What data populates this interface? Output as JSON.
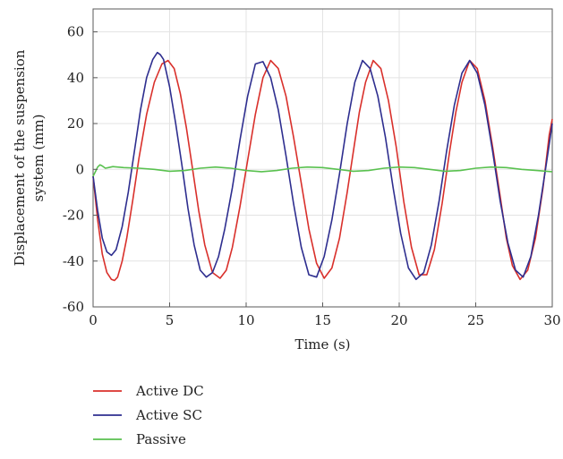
{
  "chart_data": {
    "type": "line",
    "title": "",
    "xlabel": "Time (s)",
    "ylabel_lines": [
      "Displacement of the suspension",
      "system (mm)"
    ],
    "xlim": [
      0,
      30
    ],
    "ylim": [
      -60,
      70
    ],
    "xticks": [
      0,
      5,
      10,
      15,
      20,
      25,
      30
    ],
    "yticks": [
      -60,
      -40,
      -20,
      0,
      20,
      40,
      60
    ],
    "grid": true,
    "legend_position": "bottom-left, below plot",
    "series": [
      {
        "name": "Active DC",
        "color": "#d9302b",
        "x": [
          0,
          0.3,
          0.6,
          0.9,
          1.2,
          1.4,
          1.6,
          1.9,
          2.2,
          2.6,
          3.0,
          3.5,
          4.0,
          4.5,
          4.9,
          5.3,
          5.7,
          6.1,
          6.5,
          6.9,
          7.3,
          7.8,
          8.3,
          8.7,
          9.1,
          9.6,
          10.1,
          10.6,
          11.1,
          11.6,
          12.1,
          12.6,
          13.1,
          13.6,
          14.1,
          14.6,
          15.1,
          15.6,
          16.1,
          16.6,
          17.1,
          17.4,
          17.8,
          18.3,
          18.8,
          19.3,
          19.8,
          20.3,
          20.8,
          21.3,
          21.8,
          22.3,
          22.8,
          23.3,
          23.7,
          24.1,
          24.6,
          25.1,
          25.6,
          26.1,
          26.6,
          27.0,
          27.4,
          27.9,
          28.4,
          28.9,
          29.4,
          29.8,
          30.0
        ],
        "y": [
          -3,
          -22,
          -37,
          -45,
          -48,
          -48.5,
          -47,
          -40,
          -30,
          -13,
          5,
          24,
          38,
          46,
          47.5,
          44,
          33,
          18,
          0,
          -18,
          -33,
          -45,
          -47.5,
          -44,
          -34,
          -16,
          4,
          24,
          40,
          47.5,
          44,
          32,
          14,
          -6,
          -26,
          -41,
          -47.5,
          -43,
          -30,
          -10,
          12,
          25,
          38,
          47.5,
          44,
          30,
          10,
          -14,
          -34,
          -46,
          -46,
          -35,
          -15,
          8,
          25,
          38,
          47.5,
          44,
          30,
          10,
          -12,
          -30,
          -42,
          -48,
          -44,
          -30,
          -8,
          15,
          22
        ]
      },
      {
        "name": "Active SC",
        "color": "#2e2e8f",
        "x": [
          0,
          0.3,
          0.6,
          0.9,
          1.2,
          1.5,
          1.9,
          2.3,
          2.7,
          3.1,
          3.5,
          3.9,
          4.2,
          4.4,
          4.6,
          5.0,
          5.4,
          5.8,
          6.2,
          6.6,
          7.0,
          7.4,
          7.8,
          8.2,
          8.6,
          9.1,
          9.6,
          10.1,
          10.6,
          11.1,
          11.6,
          12.1,
          12.6,
          13.1,
          13.6,
          14.1,
          14.6,
          15.1,
          15.6,
          16.1,
          16.6,
          17.1,
          17.6,
          18.1,
          18.6,
          19.1,
          19.6,
          20.1,
          20.6,
          21.1,
          21.6,
          22.1,
          22.6,
          23.1,
          23.6,
          24.1,
          24.6,
          25.1,
          25.6,
          26.1,
          26.6,
          27.1,
          27.6,
          28.1,
          28.6,
          29.1,
          29.6,
          30.0
        ],
        "y": [
          -3,
          -18,
          -30,
          -36,
          -37.5,
          -35,
          -25,
          -10,
          8,
          26,
          40,
          48,
          51,
          50,
          48,
          36,
          20,
          2,
          -17,
          -33,
          -44,
          -47,
          -45,
          -38,
          -26,
          -8,
          13,
          32,
          46,
          47,
          40,
          26,
          6,
          -15,
          -34,
          -46,
          -47,
          -38,
          -22,
          -2,
          20,
          38,
          47.5,
          44,
          32,
          14,
          -8,
          -28,
          -43,
          -48,
          -45,
          -33,
          -14,
          8,
          28,
          42,
          47.5,
          42,
          28,
          8,
          -14,
          -32,
          -44,
          -47,
          -38,
          -20,
          2,
          20
        ]
      },
      {
        "name": "Passive",
        "color": "#59c14f",
        "x": [
          0,
          0.15,
          0.3,
          0.45,
          0.6,
          0.8,
          1.0,
          1.3,
          1.6,
          2.0,
          3.0,
          4.0,
          5.0,
          6.0,
          7.0,
          8.0,
          9.0,
          10.0,
          11.0,
          12.0,
          13.0,
          14.0,
          15.0,
          16.0,
          17.0,
          18.0,
          19.0,
          20.0,
          21.0,
          22.0,
          23.0,
          24.0,
          25.0,
          26.0,
          27.0,
          28.0,
          29.0,
          30.0
        ],
        "y": [
          -3,
          -1,
          1,
          2,
          1.5,
          0.5,
          0.8,
          1.2,
          1,
          0.8,
          0.5,
          0,
          -0.8,
          -0.5,
          0.5,
          1,
          0.5,
          -0.5,
          -1,
          -0.5,
          0.5,
          1,
          0.8,
          0,
          -0.8,
          -0.5,
          0.5,
          1,
          0.8,
          0,
          -0.8,
          -0.5,
          0.5,
          1,
          0.8,
          0,
          -0.5,
          -1
        ]
      }
    ]
  }
}
